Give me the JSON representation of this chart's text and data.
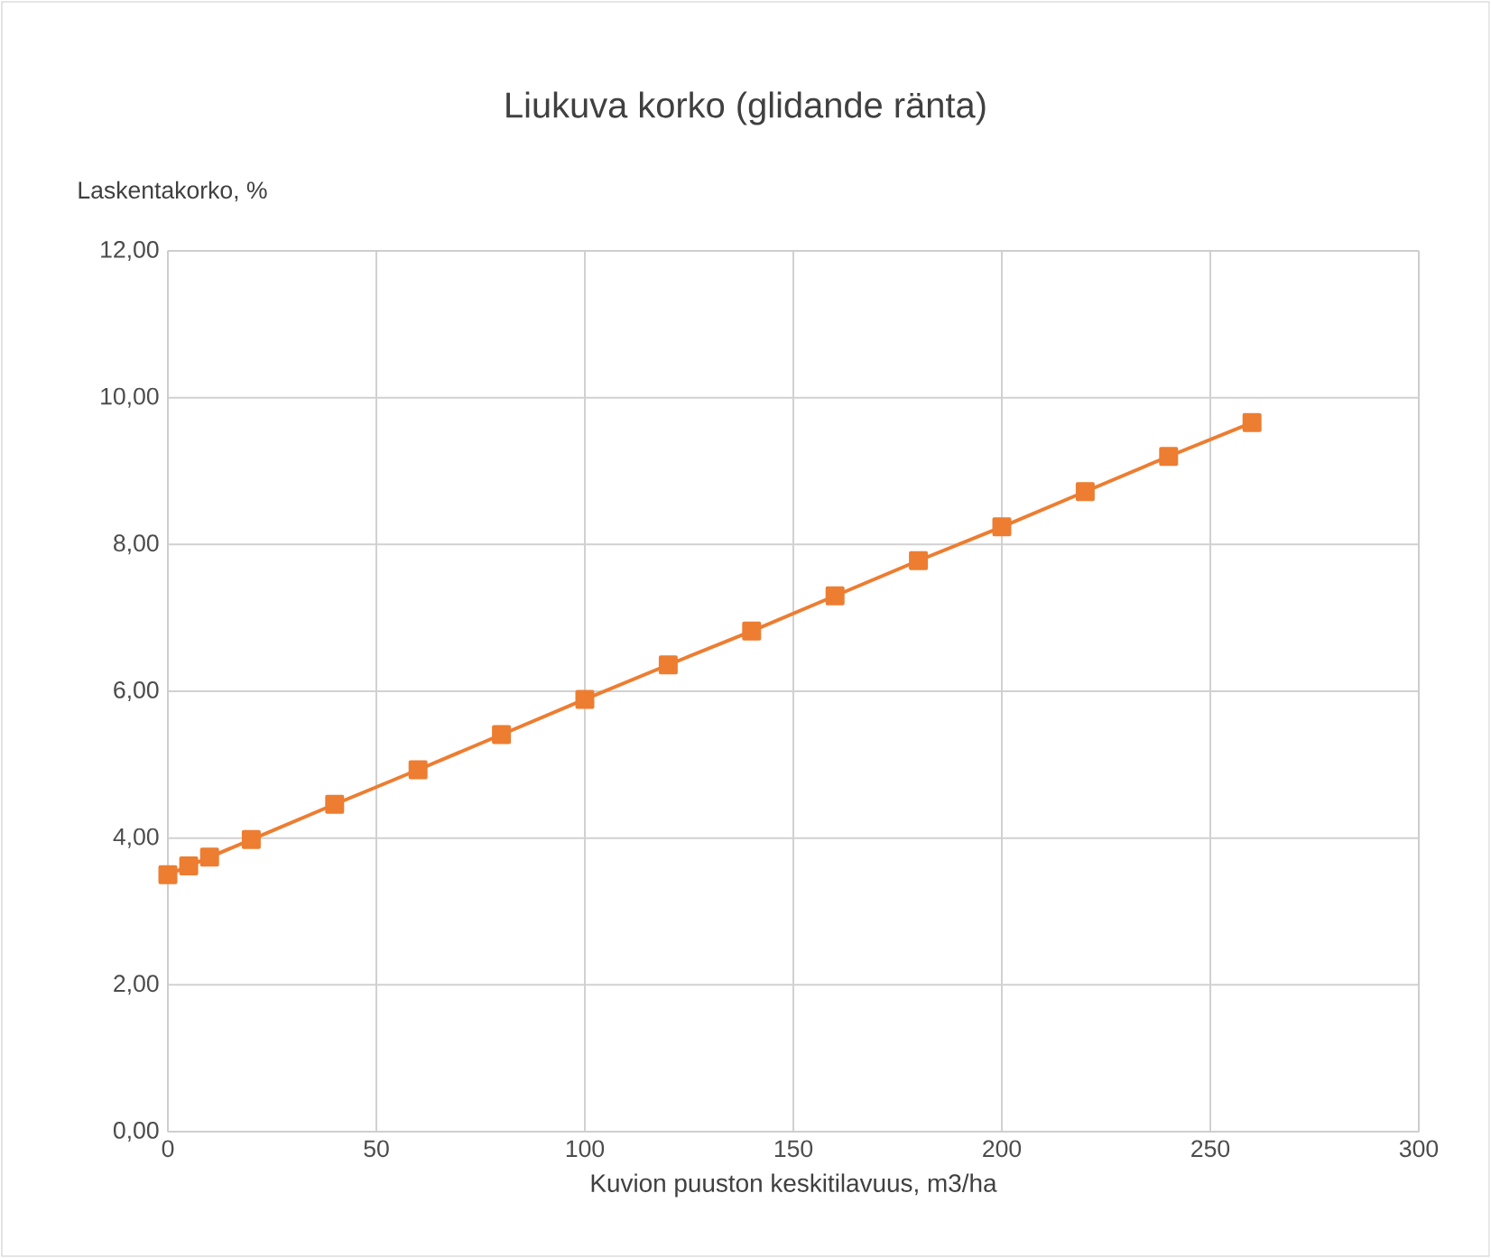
{
  "chart_data": {
    "type": "line",
    "title": "Liukuva korko  (glidande ränta)",
    "xlabel": "Kuvion puuston keskitilavuus, m3/ha",
    "ylabel": "Laskentakorko, %",
    "x": [
      0,
      5,
      10,
      20,
      40,
      60,
      80,
      100,
      120,
      140,
      160,
      180,
      200,
      220,
      240,
      260
    ],
    "series": [
      {
        "color": "#ed7d31",
        "values": [
          3.5,
          3.62,
          3.74,
          3.98,
          4.46,
          4.93,
          5.41,
          5.89,
          6.36,
          6.82,
          7.3,
          7.78,
          8.24,
          8.72,
          9.2,
          9.66
        ]
      }
    ],
    "xlim": [
      0,
      300
    ],
    "xticks": [
      0,
      50,
      100,
      150,
      200,
      250,
      300
    ],
    "ylim": [
      0,
      12
    ],
    "yticks": [
      {
        "value": 0,
        "label": "0,00"
      },
      {
        "value": 2,
        "label": "2,00"
      },
      {
        "value": 4,
        "label": "4,00"
      },
      {
        "value": 6,
        "label": "6,00"
      },
      {
        "value": 8,
        "label": "8,00"
      },
      {
        "value": 10,
        "label": "10,00"
      },
      {
        "value": 12,
        "label": "12,00"
      }
    ],
    "grid": true,
    "marker": "square",
    "line_style": "solid"
  }
}
